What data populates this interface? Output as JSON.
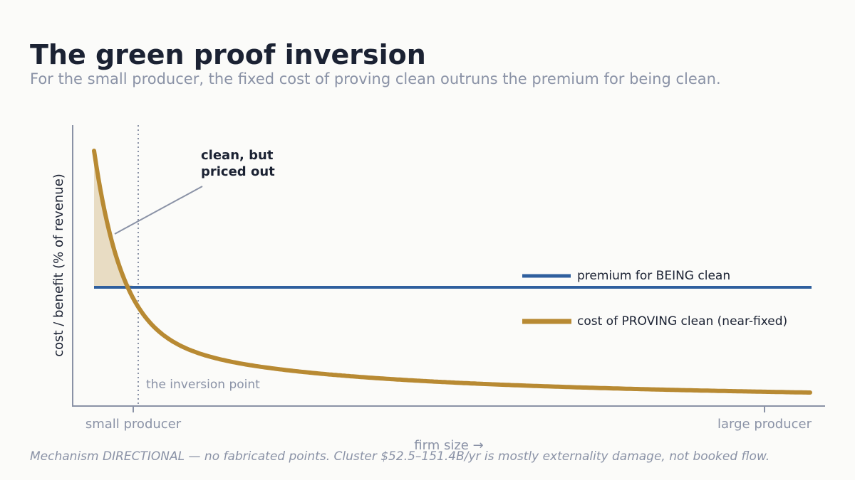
{
  "title": "The green proof inversion",
  "subtitle": "For the small producer, the fixed cost of proving clean outruns the premium for being clean.",
  "footnote": "Mechanism DIRECTIONAL — no fabricated points. Cluster $52.5–151.4B/yr is mostly externality damage, not booked flow.",
  "colors": {
    "premium": "#2f5f9e",
    "cost": "#b88a33",
    "shade": "#e8dcc3",
    "axis": "#8a92a6",
    "text": "#1b2233"
  },
  "chart_data": {
    "type": "line",
    "xlabel": "firm size →",
    "ylabel": "cost / benefit  (% of revenue)",
    "x_ticks": [
      "small producer",
      "large producer"
    ],
    "series": [
      {
        "name": "premium for BEING clean"
      },
      {
        "name": "cost of PROVING clean (near-fixed)"
      }
    ],
    "annotations": {
      "inversion_point": "the inversion point",
      "priced_out": [
        "clean, but",
        "priced out"
      ]
    },
    "legend_position": "right",
    "grid": false
  }
}
